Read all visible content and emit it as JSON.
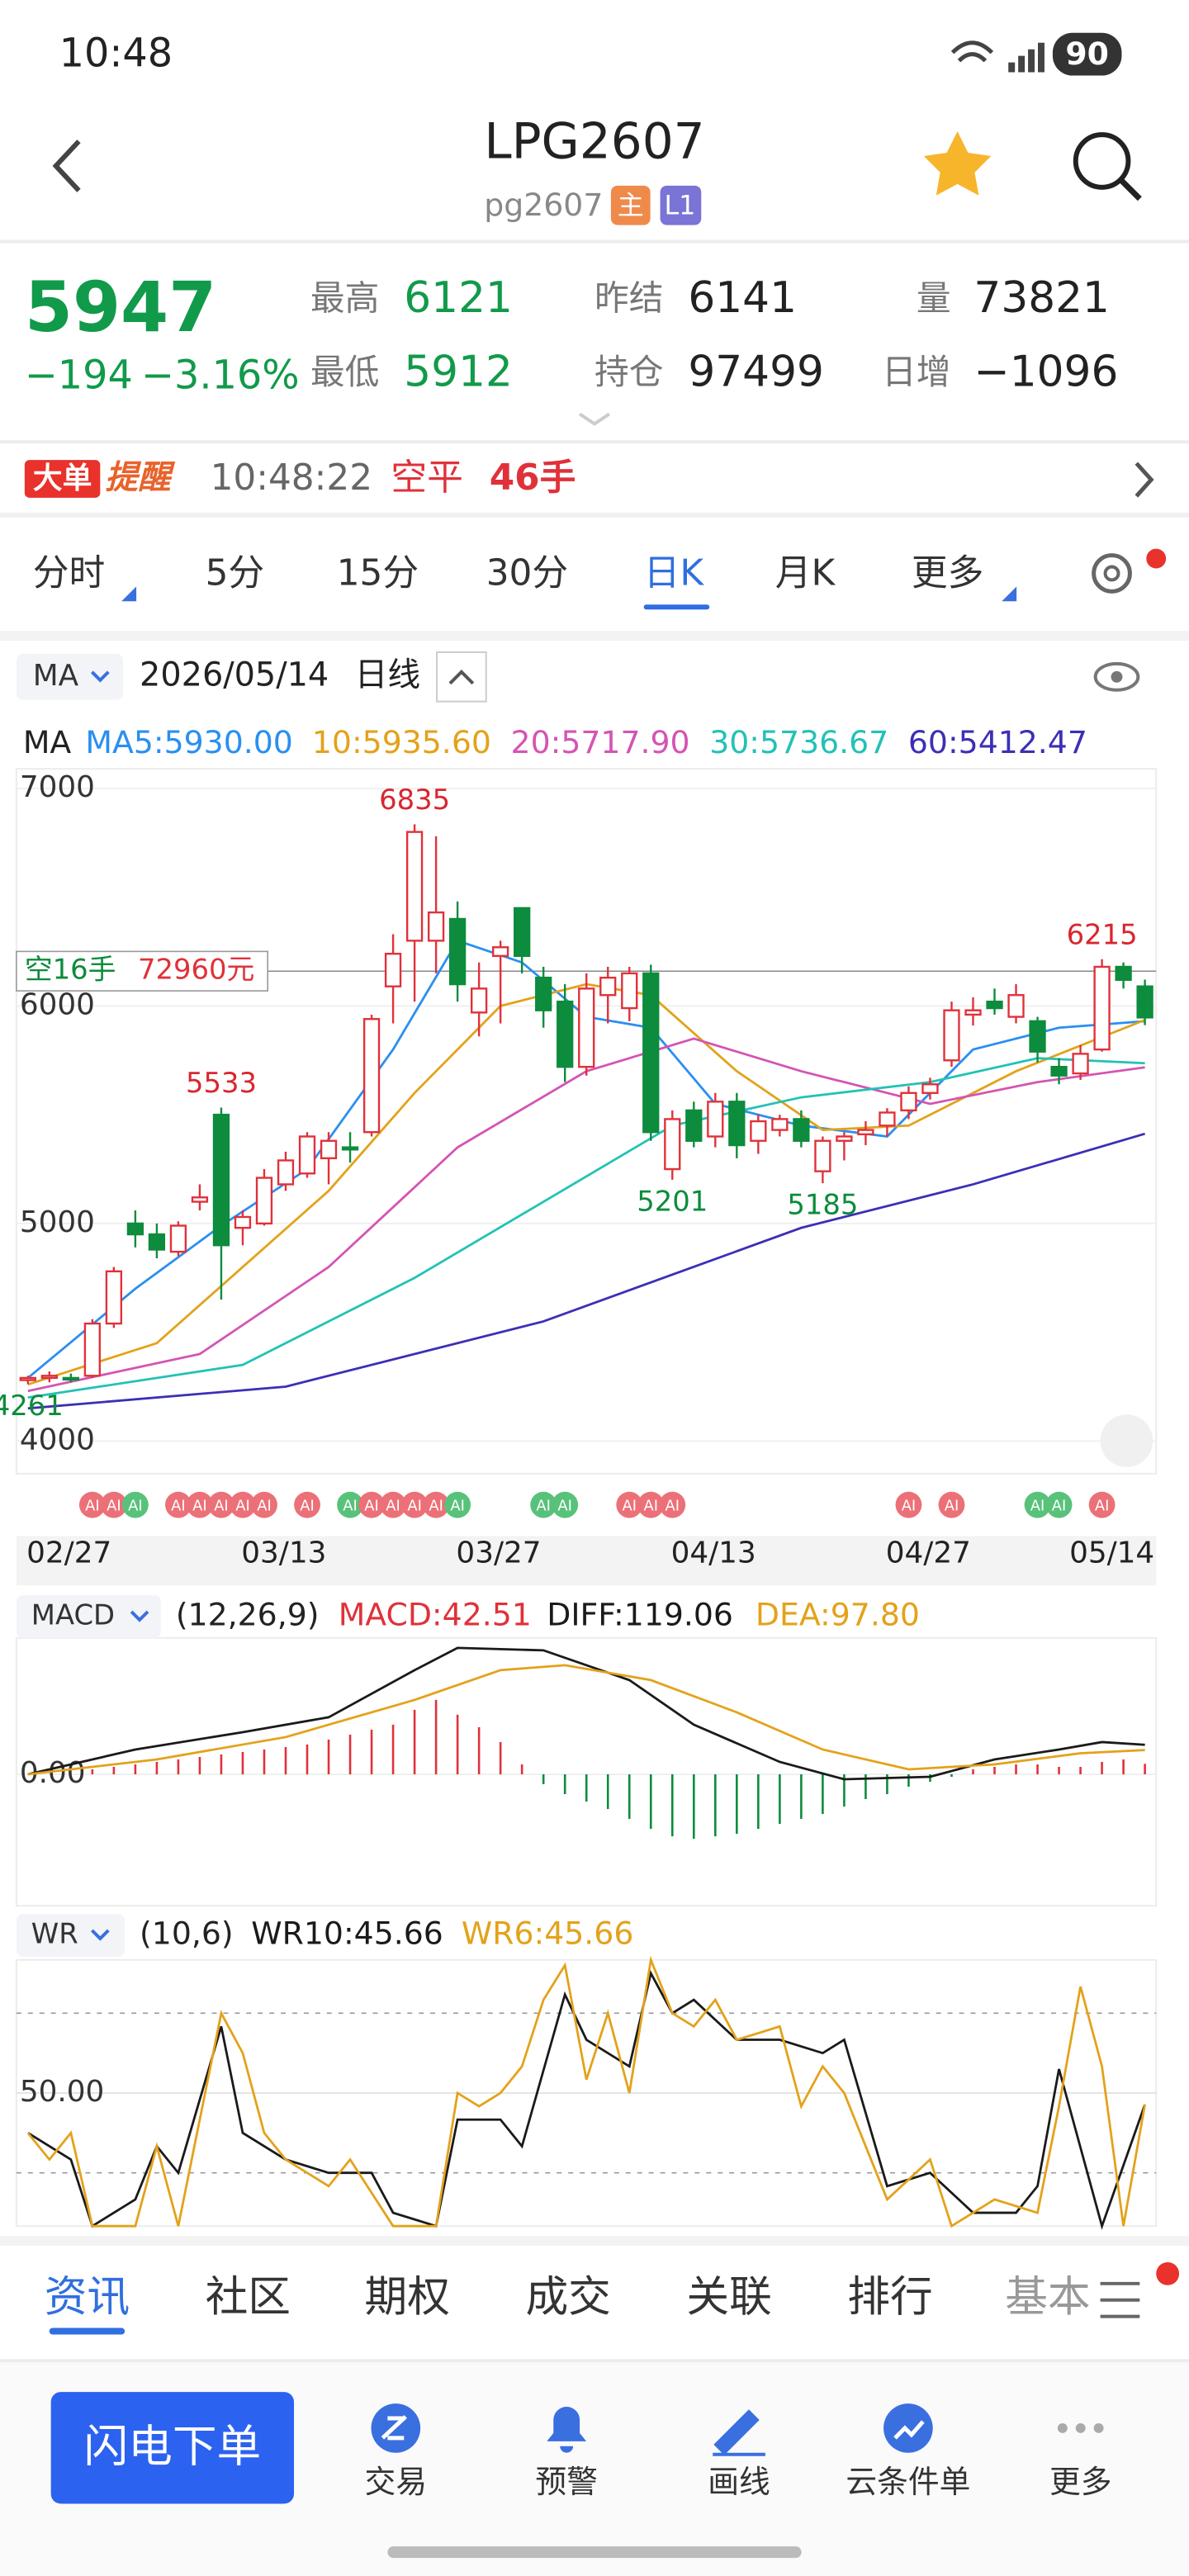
{
  "status": {
    "time": "10:48",
    "battery": 90
  },
  "header": {
    "title": "LPG2607",
    "code": "pg2607",
    "badges": [
      "主",
      "L1"
    ]
  },
  "quote": {
    "price": 5947,
    "change": "−194",
    "change_pct": "−3.16%",
    "high_label": "最高",
    "high": 6121,
    "low_label": "最低",
    "low": 5912,
    "prev_label": "昨结",
    "prev": 6141,
    "oi_label": "持仓",
    "oi": 97499,
    "volume_label": "量",
    "volume": 73821,
    "daily_label": "日增",
    "daily": "−1096"
  },
  "alert": {
    "tag1": "大单",
    "tag2": "提醒",
    "time": "10:48:22",
    "action": "空平",
    "qty": "46手"
  },
  "period_tabs": {
    "items": [
      "分时",
      "5分",
      "15分",
      "30分",
      "日K",
      "月K",
      "更多"
    ],
    "active": 4
  },
  "chart_data": [
    {
      "type": "candlestick",
      "selector": "MA",
      "date": "2026/05/14",
      "period": "日线",
      "legend_title": "MA",
      "categories": [
        null,
        "02/27",
        null,
        null,
        null,
        null,
        null,
        null,
        null,
        null,
        null,
        "03/13",
        null,
        null,
        null,
        null,
        null,
        null,
        null,
        null,
        null,
        "03/27",
        null,
        null,
        null,
        null,
        null,
        null,
        null,
        null,
        null,
        "04/13",
        null,
        null,
        null,
        null,
        null,
        null,
        null,
        null,
        null,
        "04/27",
        null,
        null,
        null,
        null,
        null,
        null,
        null,
        null,
        null,
        null,
        "05/14"
      ],
      "open": [
        4280,
        4290,
        4290,
        4300,
        4540,
        5000,
        4950,
        4870,
        5100,
        5500,
        4980,
        5000,
        5180,
        5230,
        5300,
        5350,
        5420,
        6090,
        6300,
        6300,
        6400,
        5970,
        6230,
        6450,
        6130,
        6020,
        5720,
        6050,
        5990,
        6150,
        5250,
        5520,
        5400,
        5560,
        5380,
        5430,
        5480,
        5240,
        5380,
        5410,
        5450,
        5520,
        5600,
        5750,
        5960,
        6020,
        5950,
        5930,
        5720,
        5690,
        5800,
        6180,
        6090
      ],
      "high": [
        4300,
        4320,
        4310,
        4560,
        4800,
        5060,
        5000,
        5010,
        5180,
        5533,
        5060,
        5250,
        5330,
        5420,
        5420,
        5420,
        5960,
        6330,
        6835,
        6780,
        6480,
        6200,
        6300,
        6450,
        6180,
        6100,
        6150,
        6180,
        6180,
        6190,
        5520,
        5560,
        5600,
        5600,
        5500,
        5500,
        5520,
        5400,
        5420,
        5470,
        5530,
        5630,
        5670,
        6020,
        6040,
        6080,
        6100,
        5950,
        5760,
        5820,
        6215,
        6200,
        6121
      ],
      "low": [
        4261,
        4270,
        4270,
        4290,
        4520,
        4890,
        4840,
        4850,
        5060,
        4650,
        4900,
        4990,
        5150,
        5210,
        5180,
        5280,
        5400,
        5920,
        6020,
        6150,
        6020,
        5860,
        5920,
        6150,
        5900,
        5650,
        5680,
        5920,
        5930,
        5380,
        5201,
        5350,
        5350,
        5300,
        5320,
        5400,
        5350,
        5185,
        5290,
        5360,
        5400,
        5480,
        5570,
        5720,
        5910,
        5960,
        5920,
        5740,
        5640,
        5660,
        5790,
        6080,
        5912
      ],
      "close": [
        4290,
        4300,
        4285,
        4540,
        4780,
        4950,
        4880,
        4990,
        5120,
        4900,
        5030,
        5210,
        5290,
        5400,
        5380,
        5340,
        5940,
        6240,
        6800,
        6430,
        6100,
        6080,
        6270,
        6230,
        5980,
        5720,
        6080,
        6130,
        6150,
        5420,
        5480,
        5380,
        5560,
        5360,
        5470,
        5480,
        5380,
        5380,
        5400,
        5430,
        5510,
        5600,
        5640,
        5980,
        5980,
        5990,
        6050,
        5790,
        5680,
        5780,
        6180,
        6120,
        5947
      ],
      "up_color": "#e0313a",
      "down_color": "#0c8c3c",
      "ylim": [
        3850,
        7090
      ],
      "yticks": [
        4000,
        5000,
        6000,
        7000
      ],
      "series": [
        {
          "name": "MA5:5930.00",
          "color": "#2a8ff0",
          "x": [
            0,
            5,
            9,
            13,
            17,
            20,
            23,
            26,
            29,
            32,
            36,
            40,
            44,
            48,
            52
          ],
          "values": [
            4290,
            4700,
            4990,
            5250,
            5800,
            6300,
            6200,
            5950,
            5900,
            5550,
            5450,
            5400,
            5800,
            5900,
            5930
          ]
        },
        {
          "name": "10:5935.60",
          "color": "#e3a21a",
          "x": [
            0,
            6,
            10,
            14,
            18,
            22,
            26,
            29,
            33,
            37,
            41,
            46,
            52
          ],
          "values": [
            4260,
            4450,
            4800,
            5150,
            5600,
            6000,
            6100,
            6050,
            5700,
            5430,
            5450,
            5700,
            5935.6
          ]
        },
        {
          "name": "20:5717.90",
          "color": "#d454b4",
          "x": [
            0,
            8,
            14,
            20,
            26,
            31,
            36,
            42,
            47,
            52
          ],
          "values": [
            4230,
            4400,
            4800,
            5350,
            5700,
            5850,
            5700,
            5550,
            5650,
            5717.9
          ]
        },
        {
          "name": "30:5736.67",
          "color": "#22c2b6",
          "x": [
            0,
            10,
            18,
            24,
            30,
            36,
            42,
            47,
            52
          ],
          "values": [
            4200,
            4350,
            4750,
            5100,
            5450,
            5580,
            5650,
            5760,
            5736.67
          ]
        },
        {
          "name": "60:5412.47",
          "color": "#3c2fb5",
          "x": [
            0,
            12,
            24,
            36,
            44,
            52
          ],
          "values": [
            4150,
            4250,
            4550,
            4980,
            5180,
            5412.47
          ]
        }
      ],
      "extremes": [
        {
          "index": 0,
          "value": 4261,
          "color": "#0c8c3c"
        },
        {
          "index": 9,
          "value": 5533,
          "color": "#d9262f"
        },
        {
          "index": 18,
          "value": 6835,
          "color": "#d9262f"
        },
        {
          "index": 30,
          "value": 5201,
          "color": "#0c8c3c"
        },
        {
          "index": 37,
          "value": 5185,
          "color": "#0c8c3c"
        },
        {
          "index": 50,
          "value": 6215,
          "color": "#d9262f"
        }
      ],
      "position": {
        "side": "空16手",
        "pnl": "72960元",
        "price": 6160
      },
      "ai_signals": {
        "label": "AI",
        "items": [
          {
            "index": 3,
            "color": "#ec7077"
          },
          {
            "index": 4,
            "color": "#ec7077"
          },
          {
            "index": 5,
            "color": "#58c27a"
          },
          {
            "index": 7,
            "color": "#ec7077"
          },
          {
            "index": 8,
            "color": "#ec7077"
          },
          {
            "index": 9,
            "color": "#ec7077"
          },
          {
            "index": 10,
            "color": "#ec7077"
          },
          {
            "index": 11,
            "color": "#ec7077"
          },
          {
            "index": 13,
            "color": "#ec7077"
          },
          {
            "index": 15,
            "color": "#58c27a"
          },
          {
            "index": 16,
            "color": "#ec7077"
          },
          {
            "index": 17,
            "color": "#ec7077"
          },
          {
            "index": 18,
            "color": "#ec7077"
          },
          {
            "index": 19,
            "color": "#ec7077"
          },
          {
            "index": 20,
            "color": "#58c27a"
          },
          {
            "index": 24,
            "color": "#58c27a"
          },
          {
            "index": 25,
            "color": "#58c27a"
          },
          {
            "index": 28,
            "color": "#ec7077"
          },
          {
            "index": 29,
            "color": "#ec7077"
          },
          {
            "index": 30,
            "color": "#ec7077"
          },
          {
            "index": 41,
            "color": "#ec7077"
          },
          {
            "index": 43,
            "color": "#ec7077"
          },
          {
            "index": 47,
            "color": "#58c27a"
          },
          {
            "index": 48,
            "color": "#58c27a"
          },
          {
            "index": 50,
            "color": "#ec7077"
          }
        ]
      }
    },
    {
      "type": "macd",
      "selector": "MACD",
      "params": "(12,26,9)",
      "ylim": [
        -530,
        550
      ],
      "yticks": [
        {
          "value": 0,
          "label": "0.00"
        }
      ],
      "histogram": {
        "name": "MACD:42.51",
        "up_color": "#e0313a",
        "down_color": "#0c8c3c",
        "values": [
          null,
          null,
          null,
          20,
          30,
          40,
          50,
          60,
          70,
          80,
          90,
          100,
          110,
          120,
          140,
          160,
          180,
          200,
          260,
          300,
          240,
          190,
          130,
          40,
          -40,
          -80,
          -110,
          -140,
          -180,
          -220,
          -250,
          -260,
          -250,
          -240,
          -220,
          -200,
          -180,
          -160,
          -130,
          -100,
          -80,
          -50,
          -30,
          -10,
          20,
          30,
          40,
          40,
          30,
          30,
          50,
          60,
          42.51
        ]
      },
      "series": [
        {
          "name": "DIFF:119.06",
          "color": "#1a1a1a",
          "x": [
            0,
            5,
            10,
            14,
            18,
            20,
            24,
            28,
            31,
            35,
            38,
            42,
            45,
            48,
            50,
            52
          ],
          "values": [
            0,
            100,
            170,
            230,
            420,
            510,
            500,
            380,
            200,
            50,
            -20,
            -10,
            60,
            100,
            130,
            119.06
          ]
        },
        {
          "name": "DEA:97.80",
          "color": "#e3a21a",
          "x": [
            0,
            6,
            12,
            18,
            22,
            25,
            29,
            33,
            37,
            41,
            45,
            49,
            52
          ],
          "values": [
            0,
            60,
            150,
            300,
            420,
            440,
            380,
            250,
            100,
            20,
            40,
            85,
            97.8
          ]
        }
      ]
    },
    {
      "type": "wr",
      "selector": "WR",
      "params": "(10,6)",
      "ylim": [
        0,
        100
      ],
      "yticks": [
        {
          "value": 50,
          "label": "50.00"
        }
      ],
      "ref_lines": [
        20,
        80
      ],
      "series": [
        {
          "name": "WR10:45.66",
          "color": "#1a1a1a",
          "x": [
            0,
            2,
            3,
            5,
            6,
            7,
            9,
            10,
            12,
            14,
            16,
            17,
            19,
            20,
            22,
            23,
            25,
            26,
            28,
            29,
            30,
            31,
            33,
            35,
            37,
            38,
            40,
            42,
            44,
            46,
            47,
            48,
            50,
            52
          ],
          "values": [
            35,
            25,
            0,
            10,
            30,
            20,
            75,
            35,
            25,
            20,
            20,
            5,
            0,
            40,
            40,
            30,
            87,
            70,
            60,
            95,
            80,
            85,
            70,
            70,
            65,
            70,
            15,
            20,
            5,
            5,
            15,
            59,
            0,
            45.66
          ]
        },
        {
          "name": "WR6:45.66",
          "color": "#e3a21a",
          "x": [
            0,
            1,
            2,
            3,
            5,
            6,
            7,
            9,
            10,
            11,
            12,
            14,
            15,
            17,
            19,
            20,
            21,
            22,
            23,
            24,
            25,
            26,
            27,
            28,
            29,
            30,
            31,
            32,
            33,
            35,
            36,
            37,
            38,
            40,
            42,
            43,
            45,
            47,
            48,
            49,
            50,
            51,
            52
          ],
          "values": [
            35,
            25,
            35,
            0,
            0,
            30,
            0,
            80,
            65,
            35,
            25,
            15,
            25,
            0,
            0,
            50,
            45,
            50,
            60,
            85,
            98,
            55,
            80,
            50,
            100,
            80,
            75,
            85,
            70,
            75,
            45,
            60,
            50,
            10,
            25,
            0,
            10,
            5,
            45,
            90,
            60,
            0,
            45.66
          ]
        }
      ]
    }
  ],
  "bottom_tabs": {
    "items": [
      "资讯",
      "社区",
      "期权",
      "成交",
      "关联",
      "排行",
      "基本"
    ],
    "active": 0
  },
  "actions": {
    "primary": "闪电下单",
    "items": [
      "交易",
      "预警",
      "画线",
      "云条件单",
      "更多"
    ]
  }
}
